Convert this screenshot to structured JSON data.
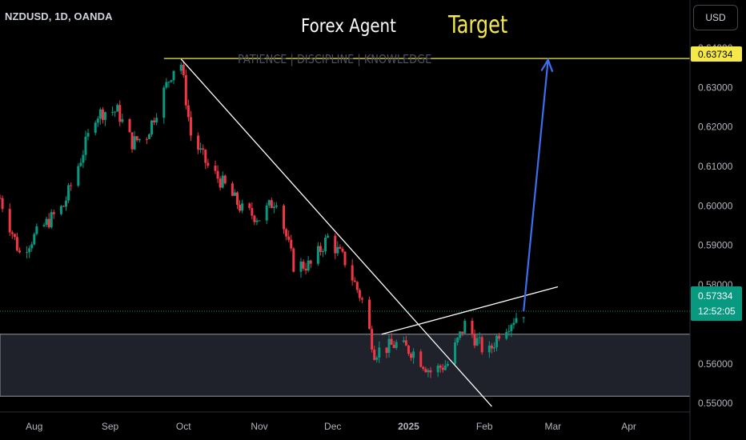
{
  "header": {
    "symbol": "NZDUSD, 1D, OANDA",
    "currency_button": "USD"
  },
  "annotations": {
    "agent_text": "Forex Agent",
    "target_text": "Target",
    "watermark": "PATIENCE  |  DISCIPLINE  |  KNOWLEDGE"
  },
  "price_axis": {
    "target_label": "0.63734",
    "current_price": "0.57334",
    "countdown": "12:52:05"
  },
  "colors": {
    "up": "#089981",
    "down": "#f23645",
    "target_line": "#f5e94a",
    "arrow": "#3b6ff0",
    "trendline": "#ffffff",
    "zone": "#2a2e39"
  },
  "chart_data": {
    "type": "candlestick",
    "ylim": [
      0.548,
      0.64
    ],
    "ytick_values": [
      0.55,
      0.56,
      0.57,
      0.58,
      0.59,
      0.6,
      0.61,
      0.62,
      0.63,
      0.64
    ],
    "ytick_labels": [
      "0.55000",
      "0.56000",
      "",
      "0.58000",
      "0.59000",
      "0.60000",
      "0.61000",
      "0.62000",
      "0.63000",
      "0.64000"
    ],
    "xticks": [
      {
        "label": "Aug",
        "date": "2024-08-01"
      },
      {
        "label": "Sep",
        "date": "2024-09-01"
      },
      {
        "label": "Oct",
        "date": "2024-10-01"
      },
      {
        "label": "Nov",
        "date": "2024-11-01"
      },
      {
        "label": "Dec",
        "date": "2024-12-01"
      },
      {
        "label": "2025",
        "date": "2025-01-01"
      },
      {
        "label": "Feb",
        "date": "2025-02-01"
      },
      {
        "label": "Mar",
        "date": "2025-03-01"
      },
      {
        "label": "Apr",
        "date": "2025-04-01"
      }
    ],
    "x_domain": [
      "2024-07-18",
      "2025-04-26"
    ],
    "closes": [
      {
        "date": "2024-07-18",
        "close": 0.602
      },
      {
        "date": "2024-07-26",
        "close": 0.588
      },
      {
        "date": "2024-08-05",
        "close": 0.595
      },
      {
        "date": "2024-08-13",
        "close": 0.6
      },
      {
        "date": "2024-08-20",
        "close": 0.612
      },
      {
        "date": "2024-08-26",
        "close": 0.623
      },
      {
        "date": "2024-08-30",
        "close": 0.624
      },
      {
        "date": "2024-09-04",
        "close": 0.624
      },
      {
        "date": "2024-09-10",
        "close": 0.616
      },
      {
        "date": "2024-09-16",
        "close": 0.618
      },
      {
        "date": "2024-09-23",
        "close": 0.629
      },
      {
        "date": "2024-09-27",
        "close": 0.635
      },
      {
        "date": "2024-09-30",
        "close": 0.636
      },
      {
        "date": "2024-10-04",
        "close": 0.618
      },
      {
        "date": "2024-10-11",
        "close": 0.61
      },
      {
        "date": "2024-10-18",
        "close": 0.605
      },
      {
        "date": "2024-10-25",
        "close": 0.599
      },
      {
        "date": "2024-11-01",
        "close": 0.597
      },
      {
        "date": "2024-11-08",
        "close": 0.602
      },
      {
        "date": "2024-11-15",
        "close": 0.585
      },
      {
        "date": "2024-11-22",
        "close": 0.585
      },
      {
        "date": "2024-11-29",
        "close": 0.592
      },
      {
        "date": "2024-12-06",
        "close": 0.586
      },
      {
        "date": "2024-12-13",
        "close": 0.576
      },
      {
        "date": "2024-12-18",
        "close": 0.563
      },
      {
        "date": "2024-12-27",
        "close": 0.565
      },
      {
        "date": "2025-01-03",
        "close": 0.563
      },
      {
        "date": "2025-01-10",
        "close": 0.558
      },
      {
        "date": "2025-01-17",
        "close": 0.56
      },
      {
        "date": "2025-01-24",
        "close": 0.57
      },
      {
        "date": "2025-01-31",
        "close": 0.564
      },
      {
        "date": "2025-02-03",
        "close": 0.563
      },
      {
        "date": "2025-02-07",
        "close": 0.568
      },
      {
        "date": "2025-02-14",
        "close": 0.572
      },
      {
        "date": "2025-02-17",
        "close": 0.5733
      }
    ],
    "levels": {
      "target": 0.63734,
      "current": 0.57334,
      "zone_top": 0.5675,
      "zone_bottom": 0.5518
    },
    "lines": [
      {
        "name": "downtrend",
        "from": {
          "date": "2024-09-30",
          "price": 0.6372
        },
        "to": {
          "date": "2025-02-04",
          "price": 0.5492
        }
      },
      {
        "name": "rising",
        "from": {
          "date": "2024-12-21",
          "price": 0.5675
        },
        "to": {
          "date": "2025-03-03",
          "price": 0.5795
        }
      },
      {
        "name": "projection",
        "from": {
          "date": "2025-02-17",
          "price": 0.5733
        },
        "to": {
          "date": "2025-02-27",
          "price": 0.637
        }
      }
    ]
  }
}
